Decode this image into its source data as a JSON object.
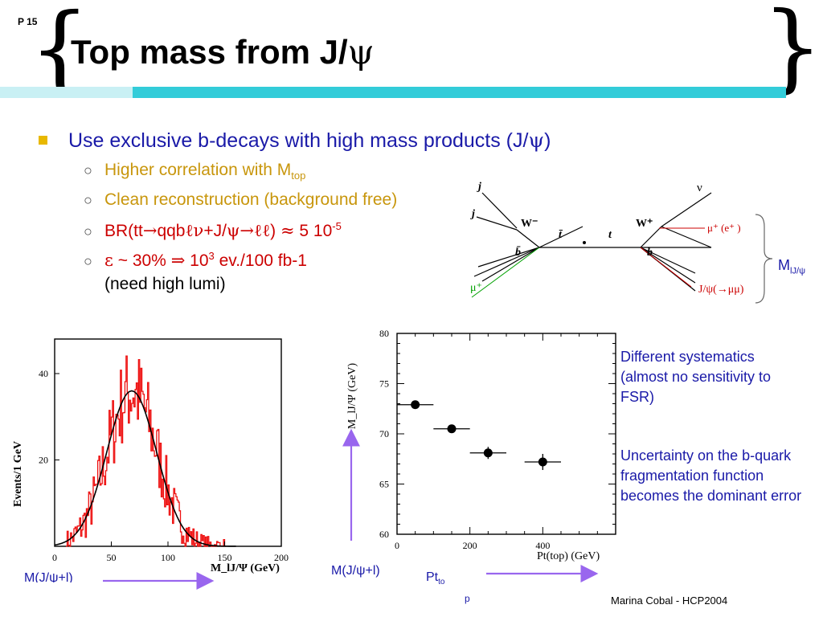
{
  "page_number": "P 15",
  "title": {
    "main": "Top mass from J/",
    "psi": "ψ"
  },
  "bullets": {
    "main_a": "Use exclusive b-decays with high mass products (J/",
    "main_psi": "ψ",
    "main_b": ")",
    "sub1_a": "Higher correlation with M",
    "sub1_sub": "top",
    "sub2": "Clean reconstruction (background free)",
    "sub3_a": "BR(tt",
    "sub3_arrow": "→",
    "sub3_b": "qqb",
    "sub3_c": "ℓν",
    "sub3_d": "+J/",
    "sub3_psi": "ψ",
    "sub3_arrow2": "→",
    "sub3_ll": "ℓℓ",
    "sub3_e": ") ",
    "sub3_approx": "≈",
    "sub3_f": " 5 10",
    "sub3_sup": "-5",
    "sub4_eps": "ε",
    "sub4_a": " ~ 30% ",
    "sub4_implies": "⇒",
    "sub4_b": " 10",
    "sub4_sup": "3",
    "sub4_c": " ev./100 fb-1",
    "sub4_line2": "(need high lumi)",
    "circle_glyph": "○"
  },
  "diagram": {
    "j1": "j",
    "j2": "j",
    "wminus": "W⁻",
    "tbar": "t̄",
    "t": "t",
    "wplus": "W⁺",
    "nu": "ν",
    "bbar": "b̄",
    "b": "b",
    "muplus": "μ⁺ (e⁺ )",
    "jpsi": "J/ψ(→μμ)",
    "mu_left": "μ⁺"
  },
  "mlj_label": {
    "main": "M",
    "sub": "lJ/ψ"
  },
  "side_notes": {
    "note1": "Different systematics (almost no sensitivity to FSR)",
    "note2": "Uncertainty on the b-quark fragmentation function becomes the dominant error"
  },
  "bottom_labels": {
    "left_partial": "M(J/ψ+l)",
    "middle": "M(J/ψ+l)",
    "pt_main": "Pt",
    "pt_sub": "to",
    "p_letter": "p"
  },
  "footer": "Marina Cobal - HCP2004",
  "colors": {
    "title_bar_dark": "#33ccd9",
    "title_bar_light": "#c9f0f4",
    "bullet_blue": "#1a1aa8",
    "gold": "#c8960c",
    "red": "#cc0000",
    "arrow_purple": "#9966ee"
  },
  "chart_data": [
    {
      "type": "bar",
      "ylabel": "Events/1 GeV",
      "xlabel": "M_lJ/Ψ (GeV)",
      "xlim": [
        0,
        200
      ],
      "ylim": [
        0,
        48
      ],
      "xticks": [
        "0",
        "50",
        "100",
        "150",
        "200"
      ],
      "yticks": [
        "20",
        "40"
      ],
      "histogram_mean": 68,
      "histogram_sigma": 22,
      "histogram_peak": 36,
      "fit_curve": "gaussian"
    },
    {
      "type": "scatter",
      "ylabel": "M_lJ/Ψ (GeV)",
      "xlabel": "Pt(top) (GeV)",
      "xlim": [
        0,
        600
      ],
      "ylim": [
        60,
        80
      ],
      "xticks": [
        "0",
        "200",
        "400"
      ],
      "yticks": [
        "60",
        "65",
        "70",
        "75",
        "80"
      ],
      "points": [
        {
          "x": 50,
          "y": 72.9,
          "xerr": 50,
          "yerr": 0.3
        },
        {
          "x": 150,
          "y": 70.5,
          "xerr": 50,
          "yerr": 0.3
        },
        {
          "x": 250,
          "y": 68.1,
          "xerr": 50,
          "yerr": 0.6
        },
        {
          "x": 400,
          "y": 67.2,
          "xerr": 50,
          "yerr": 0.8
        }
      ]
    }
  ]
}
